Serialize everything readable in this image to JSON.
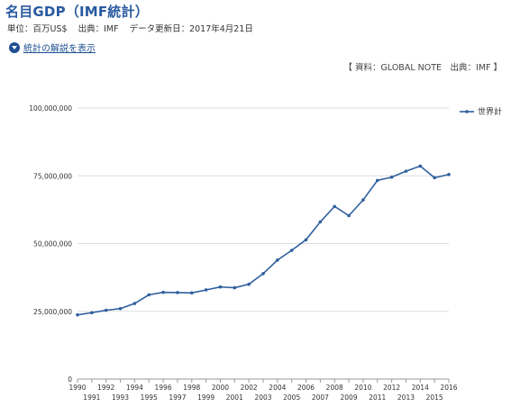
{
  "header": {
    "title": "名目GDP（IMF統計）",
    "unit": "単位：百万US$",
    "source": "出典：IMF",
    "updated": "データ更新日：2017年4月21日"
  },
  "explain_link": {
    "label": "統計の解説を表示",
    "icon": "chevron-down-circle-icon"
  },
  "source_note": "【 資料：GLOBAL NOTE　出典：IMF 】",
  "colors": {
    "line": "#2f5f9e",
    "grid": "#dddddd",
    "title": "#2a5aa0"
  },
  "chart_data": {
    "type": "line",
    "title": "名目GDP（IMF統計）",
    "xlabel": "",
    "ylabel": "",
    "ylim": [
      0,
      100000000
    ],
    "yticks": [
      0,
      25000000,
      50000000,
      75000000,
      100000000
    ],
    "ytick_labels": [
      "0",
      "25,000,000",
      "50,000,000",
      "75,000,000",
      "100,000,000"
    ],
    "grid": true,
    "legend_position": "top-right",
    "x": [
      1990,
      1991,
      1992,
      1993,
      1994,
      1995,
      1996,
      1997,
      1998,
      1999,
      2000,
      2001,
      2002,
      2003,
      2004,
      2005,
      2006,
      2007,
      2008,
      2009,
      2010,
      2011,
      2012,
      2013,
      2014,
      2015,
      2016
    ],
    "x_tick_labels": [
      "1990",
      "1991",
      "1992",
      "1993",
      "1994",
      "1995",
      "1996",
      "1997",
      "1998",
      "1999",
      "2000",
      "2001",
      "2002",
      "2003",
      "2004",
      "2005",
      "2006",
      "2007",
      "2008",
      "2009",
      "2010",
      "2011",
      "2012",
      "2013",
      "2014",
      "2015",
      "2016"
    ],
    "series": [
      {
        "name": "世界計",
        "values": [
          23700000,
          24500000,
          25400000,
          26000000,
          27900000,
          31100000,
          32000000,
          31900000,
          31800000,
          32900000,
          34000000,
          33700000,
          35000000,
          38900000,
          43900000,
          47500000,
          51400000,
          58000000,
          63700000,
          60300000,
          66100000,
          73300000,
          74500000,
          76700000,
          78600000,
          74300000,
          75500000
        ]
      }
    ]
  }
}
